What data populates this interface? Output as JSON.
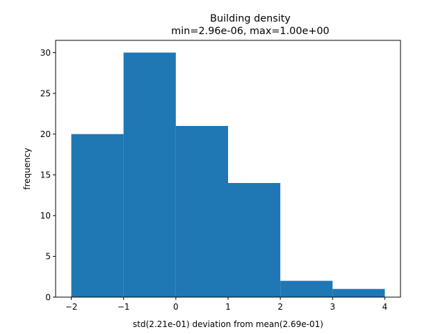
{
  "chart_data": {
    "type": "bar",
    "title": "Building density",
    "subtitle": "min=2.96e-06, max=1.00e+00",
    "xlabel": "std(2.21e-01) deviation from mean(2.69e-01)",
    "ylabel": "frequency",
    "bins": [
      {
        "x0": -2,
        "x1": -1,
        "value": 20
      },
      {
        "x0": -1,
        "x1": 0,
        "value": 30
      },
      {
        "x0": 0,
        "x1": 1,
        "value": 21
      },
      {
        "x0": 1,
        "x1": 2,
        "value": 14
      },
      {
        "x0": 2,
        "x1": 3,
        "value": 2
      },
      {
        "x0": 3,
        "x1": 4,
        "value": 1
      }
    ],
    "xlim": [
      -2.3,
      4.3
    ],
    "ylim": [
      0,
      31.5
    ],
    "xticks": [
      -2,
      -1,
      0,
      1,
      2,
      3,
      4
    ],
    "xtick_labels": [
      "−2",
      "−1",
      "0",
      "1",
      "2",
      "3",
      "4"
    ],
    "yticks": [
      0,
      5,
      10,
      15,
      20,
      25,
      30
    ],
    "ytick_labels": [
      "0",
      "5",
      "10",
      "15",
      "20",
      "25",
      "30"
    ],
    "grid": false,
    "bar_color": "#1f77b4"
  }
}
